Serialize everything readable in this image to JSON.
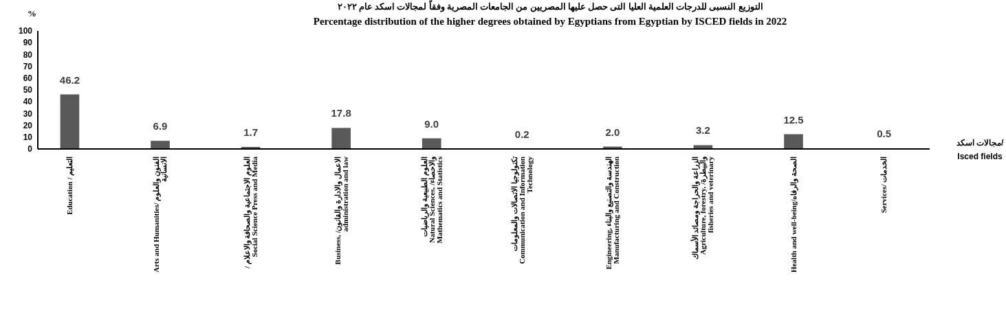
{
  "chart_data": {
    "type": "bar",
    "title": "التوزيع النسبى للدرجات العلمية العليا التى حصل عليها المصريين من الجامعات المصرية وفقاً لمجالات اسكد عام ٢٠٢٢",
    "subtitle": "Percentage distribution of the higher degrees obtained by Egyptians from Egyptian by ISCED fields in 2022",
    "ylabel": "%",
    "xlabel": "مجالات اسكد/\nIsced fields",
    "categories": [
      "Education / التعليم",
      "Arts and Humanities/ الفنون والعلوم\nالانسانية",
      "/ العلوم الاجتماعية والصحافة والاعلام\nSocial Science Press and Media",
      "Business, /الاعمال والادارة والقانون\nadministration and law",
      "العلوم الطبيعية والرياضيات\nNatural Sciences, /والاحصاء\nMathematics and Statistics",
      "تكنولوجيا الاتصالات والمعلومات\nCommunication and Information\nTechnology",
      "Engineering, الهندسة والتصنيع والبناء\nManufacturing and Construction",
      "الزراعة والحراجة ومصائد الأسماك\nAgriculture, forestry, /والبيطرة\nfisheries and veterinary",
      "Health and well-being/الصحة والرفاه",
      "Services/ الخدمات"
    ],
    "values": [
      46.2,
      6.9,
      1.7,
      17.8,
      9.0,
      0.2,
      2.0,
      3.2,
      12.5,
      0.5
    ],
    "value_labels": [
      "46.2",
      "6.9",
      "1.7",
      "17.8",
      "9.0",
      "0.2",
      "2.0",
      "3.2",
      "12.5",
      "0.5"
    ],
    "color": "#595959",
    "ylim": [
      0,
      100
    ],
    "yticks": [
      0,
      10,
      20,
      30,
      40,
      50,
      60,
      70,
      80,
      90,
      100
    ],
    "grid": false
  }
}
